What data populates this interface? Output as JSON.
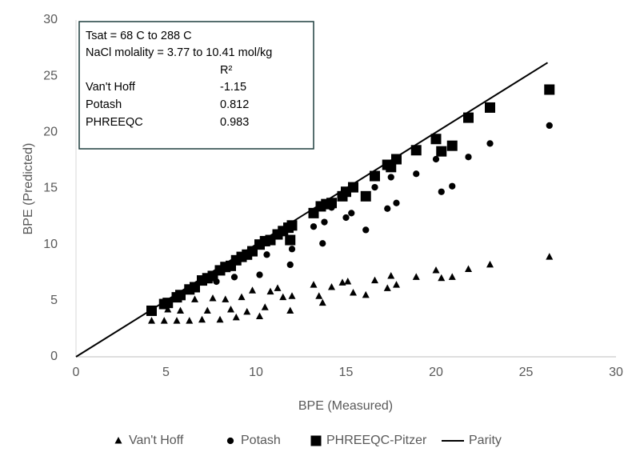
{
  "chart_data": {
    "type": "scatter",
    "x_label": "BPE (Measured)",
    "y_label": "BPE (Predicted)",
    "xlim": [
      0,
      30
    ],
    "ylim": [
      0,
      30
    ],
    "xticks": [
      0,
      5,
      10,
      15,
      20,
      25,
      30
    ],
    "yticks": [
      0,
      5,
      10,
      15,
      20,
      25,
      30
    ],
    "grid": false,
    "legend": "bottom",
    "annotation": {
      "lines": [
        "Tsat = 68 C to 288 C",
        "NaCl molality = 3.77 to 10.41 mol/kg"
      ],
      "header": "R²",
      "rows": [
        [
          "Van't Hoff",
          -1.15
        ],
        [
          "Potash",
          0.812
        ],
        [
          "PHREEQC",
          0.983
        ]
      ]
    },
    "series": [
      {
        "name": "Van't Hoff",
        "color": "#000000",
        "marker": "triangle",
        "x": [
          4.2,
          4.9,
          5.1,
          5.6,
          5.8,
          6.3,
          6.6,
          7.0,
          7.3,
          7.6,
          8.0,
          8.3,
          8.6,
          8.9,
          9.2,
          9.5,
          9.8,
          10.2,
          10.5,
          10.8,
          11.2,
          11.5,
          11.9,
          12.0,
          13.2,
          13.5,
          13.7,
          14.2,
          14.8,
          15.1,
          15.4,
          16.1,
          16.6,
          17.3,
          17.5,
          17.8,
          18.9,
          20.0,
          20.3,
          20.9,
          21.8,
          23.0,
          26.3
        ],
        "y": [
          3.2,
          3.2,
          4.2,
          3.2,
          4.1,
          3.2,
          5.1,
          3.3,
          4.1,
          5.2,
          3.3,
          5.1,
          4.2,
          3.5,
          5.3,
          4.0,
          5.9,
          3.6,
          4.4,
          5.8,
          6.1,
          5.3,
          4.1,
          5.4,
          6.4,
          5.4,
          4.8,
          6.2,
          6.6,
          6.7,
          5.7,
          5.5,
          6.8,
          6.1,
          7.2,
          6.4,
          7.1,
          7.7,
          7.0,
          7.1,
          7.8,
          8.2,
          8.9
        ]
      },
      {
        "name": "Potash",
        "color": "#000000",
        "marker": "circle",
        "x": [
          4.9,
          5.6,
          6.2,
          7.0,
          7.8,
          8.8,
          9.5,
          10.2,
          10.6,
          11.9,
          12.0,
          13.2,
          13.7,
          13.8,
          14.2,
          15.0,
          15.3,
          16.1,
          16.6,
          17.3,
          17.5,
          17.8,
          18.9,
          20.0,
          20.3,
          20.9,
          21.8,
          23.0,
          26.3
        ],
        "y": [
          4.6,
          5.3,
          6.0,
          6.8,
          6.7,
          7.1,
          9.0,
          7.3,
          9.1,
          8.2,
          9.6,
          11.6,
          10.1,
          12.0,
          13.3,
          12.4,
          12.8,
          11.3,
          15.1,
          13.2,
          16.0,
          13.7,
          16.3,
          17.6,
          14.7,
          15.2,
          17.8,
          19.0,
          20.6
        ]
      },
      {
        "name": "PHREEQC-Pitzer",
        "color": "#000000",
        "marker": "square",
        "x": [
          4.2,
          4.9,
          5.1,
          5.6,
          5.8,
          6.3,
          6.6,
          7.0,
          7.3,
          7.6,
          8.0,
          8.3,
          8.6,
          8.9,
          9.2,
          9.5,
          9.8,
          10.2,
          10.5,
          10.8,
          11.2,
          11.5,
          11.8,
          11.9,
          12.0,
          13.2,
          13.6,
          13.9,
          14.2,
          14.8,
          15.0,
          15.4,
          16.1,
          16.6,
          17.3,
          17.5,
          17.8,
          18.9,
          20.0,
          20.3,
          20.9,
          21.8,
          23.0,
          26.3
        ],
        "y": [
          4.1,
          4.7,
          4.8,
          5.3,
          5.5,
          6.0,
          6.2,
          6.8,
          7.0,
          7.2,
          7.7,
          8.0,
          8.1,
          8.6,
          8.9,
          9.1,
          9.4,
          10.0,
          10.3,
          10.4,
          10.9,
          11.2,
          11.5,
          10.4,
          11.7,
          12.8,
          13.4,
          13.6,
          13.7,
          14.3,
          14.7,
          15.1,
          14.3,
          16.1,
          17.1,
          16.9,
          17.6,
          18.4,
          19.4,
          18.3,
          18.8,
          21.3,
          22.2,
          23.8
        ]
      },
      {
        "name": "Parity",
        "color": "#000000",
        "marker": "line",
        "x": [
          0,
          26.2
        ],
        "y": [
          0,
          26.2
        ]
      }
    ]
  }
}
